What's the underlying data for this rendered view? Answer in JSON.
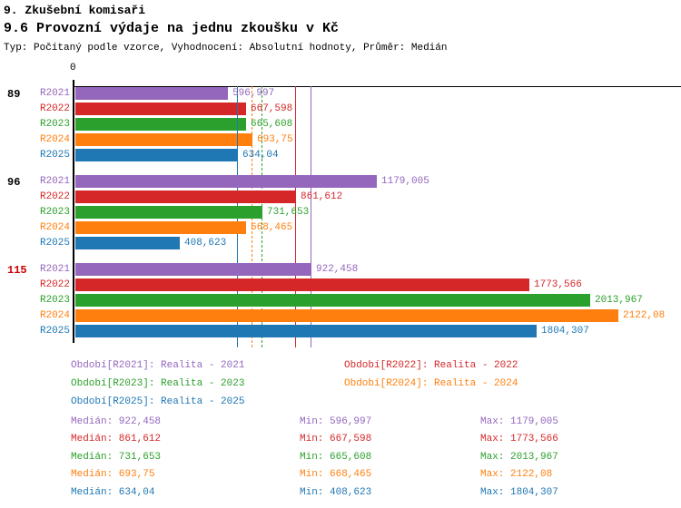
{
  "titles": {
    "line1": "9. Zkušební komisaři",
    "line2": "9.6 Provozní výdaje na jednu zkoušku v Kč",
    "line3": "Typ: Počítaný podle vzorce, Vyhodnocení: Absolutní hodnoty, Průměr: Medián"
  },
  "axis": {
    "zero_label": "0"
  },
  "colors": {
    "R2021": "#9467bd",
    "R2022": "#d62728",
    "R2023": "#2ca02c",
    "R2024": "#ff7f0e",
    "R2025": "#1f77b4",
    "group_label_default": "#000000",
    "group_label_alert": "#cc0000",
    "axis": "#000000"
  },
  "series_order": [
    "R2021",
    "R2022",
    "R2023",
    "R2024",
    "R2025"
  ],
  "chart_data": {
    "type": "bar",
    "orientation": "horizontal",
    "title": "9.6 Provozní výdaje na jednu zkoušku v Kč",
    "x_axis": {
      "origin_label": "0",
      "origin_value": 0
    },
    "categories": [
      "89",
      "96",
      "115"
    ],
    "groups": [
      {
        "label": "89",
        "label_color": "#000000",
        "rows": [
          {
            "series": "R2021",
            "value": 596.997,
            "value_label": "596,997"
          },
          {
            "series": "R2022",
            "value": 667.598,
            "value_label": "667,598"
          },
          {
            "series": "R2023",
            "value": 665.608,
            "value_label": "665,608"
          },
          {
            "series": "R2024",
            "value": 693.75,
            "value_label": "693,75"
          },
          {
            "series": "R2025",
            "value": 634.04,
            "value_label": "634,04"
          }
        ]
      },
      {
        "label": "96",
        "label_color": "#000000",
        "rows": [
          {
            "series": "R2021",
            "value": 1179.005,
            "value_label": "1179,005"
          },
          {
            "series": "R2022",
            "value": 861.612,
            "value_label": "861,612"
          },
          {
            "series": "R2023",
            "value": 731.653,
            "value_label": "731,653"
          },
          {
            "series": "R2024",
            "value": 668.465,
            "value_label": "668,465"
          },
          {
            "series": "R2025",
            "value": 408.623,
            "value_label": "408,623"
          }
        ]
      },
      {
        "label": "115",
        "label_color": "#cc0000",
        "rows": [
          {
            "series": "R2021",
            "value": 922.458,
            "value_label": "922,458"
          },
          {
            "series": "R2022",
            "value": 1773.566,
            "value_label": "1773,566"
          },
          {
            "series": "R2023",
            "value": 2013.967,
            "value_label": "2013,967"
          },
          {
            "series": "R2024",
            "value": 2122.08,
            "value_label": "2122,08"
          },
          {
            "series": "R2025",
            "value": 1804.307,
            "value_label": "1804,307"
          }
        ]
      }
    ],
    "median_lines": [
      {
        "series": "R2021",
        "value": 922.458,
        "style": "solid"
      },
      {
        "series": "R2022",
        "value": 861.612,
        "style": "solid"
      },
      {
        "series": "R2023",
        "value": 731.653,
        "style": "dashed"
      },
      {
        "series": "R2024",
        "value": 693.75,
        "style": "dashed"
      },
      {
        "series": "R2025",
        "value": 634.04,
        "style": "solid"
      }
    ]
  },
  "legend": {
    "items": [
      {
        "series": "R2021",
        "label": "Období[R2021]: Realita - 2021"
      },
      {
        "series": "R2022",
        "label": "Období[R2022]: Realita - 2022"
      },
      {
        "series": "R2023",
        "label": "Období[R2023]: Realita - 2023"
      },
      {
        "series": "R2024",
        "label": "Období[R2024]: Realita - 2024"
      },
      {
        "series": "R2025",
        "label": "Období[R2025]: Realita - 2025"
      }
    ]
  },
  "stats": {
    "rows": [
      {
        "series": "R2021",
        "median": "Medián: 922,458",
        "min": "Min: 596,997",
        "max": "Max: 1179,005"
      },
      {
        "series": "R2022",
        "median": "Medián: 861,612",
        "min": "Min: 667,598",
        "max": "Max: 1773,566"
      },
      {
        "series": "R2023",
        "median": "Medián: 731,653",
        "min": "Min: 665,608",
        "max": "Max: 2013,967"
      },
      {
        "series": "R2024",
        "median": "Medián: 693,75",
        "min": "Min: 668,465",
        "max": "Max: 2122,08"
      },
      {
        "series": "R2025",
        "median": "Medián: 634,04",
        "min": "Min: 408,623",
        "max": "Max: 1804,307"
      }
    ]
  }
}
